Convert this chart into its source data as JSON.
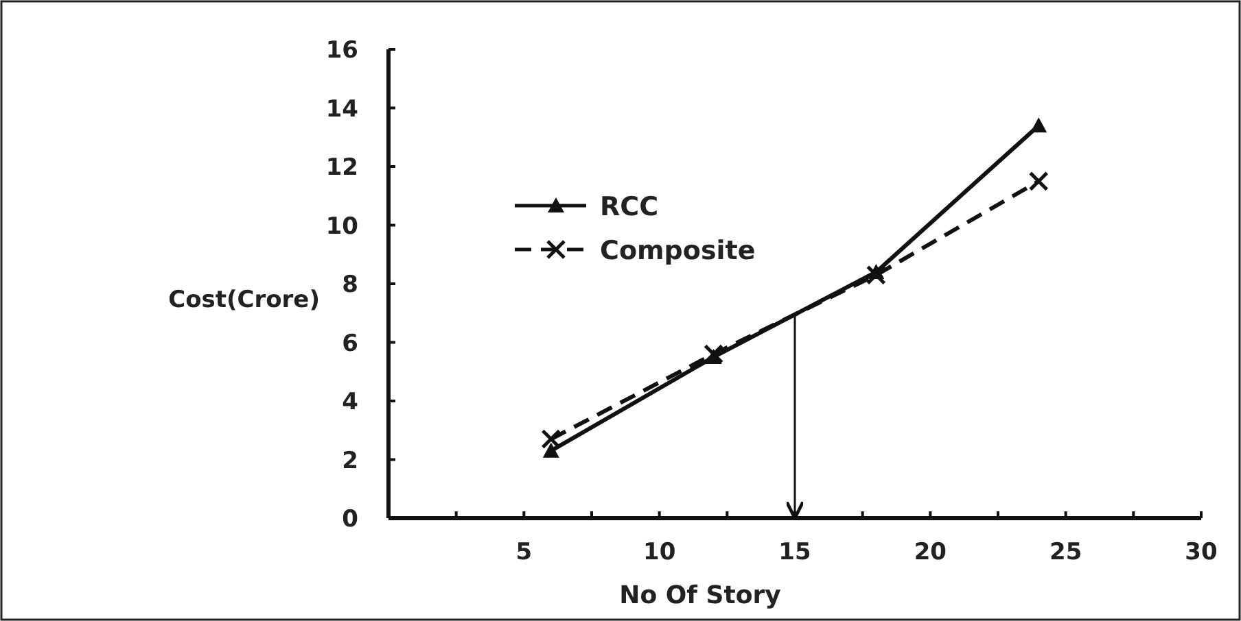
{
  "chart_data": {
    "type": "line",
    "xlabel": "No Of Story",
    "ylabel": "Cost(Crore)",
    "xlim": [
      0,
      30
    ],
    "ylim": [
      0,
      16
    ],
    "xticks": [
      {
        "value": 2.5,
        "label": null
      },
      5,
      {
        "value": 7.5,
        "label": null
      },
      10,
      {
        "value": 12.5,
        "label": null
      },
      15,
      {
        "value": 17.5,
        "label": null
      },
      20,
      {
        "value": 22.5,
        "label": null
      },
      25,
      {
        "value": 27.5,
        "label": null
      },
      30
    ],
    "yticks": [
      0,
      2,
      4,
      6,
      8,
      10,
      12,
      14,
      16
    ],
    "grid": false,
    "legend": "top left",
    "series": [
      {
        "name": "RCC",
        "color": "#111111",
        "x": [
          6,
          12,
          18,
          24
        ],
        "values": [
          2.3,
          5.5,
          8.4,
          13.4
        ],
        "marker": "triangle",
        "line_style": "solid"
      },
      {
        "name": "Composite",
        "color": "#111111",
        "x": [
          6,
          12,
          18,
          24
        ],
        "values": [
          2.7,
          5.6,
          8.3,
          11.5
        ],
        "marker": "cross",
        "line_style": "dashed"
      },
      {
        "color": "#111111",
        "x": [
          15,
          15
        ],
        "values": [
          6.9,
          0
        ],
        "marker": "none",
        "line_style": "solid"
      }
    ]
  }
}
